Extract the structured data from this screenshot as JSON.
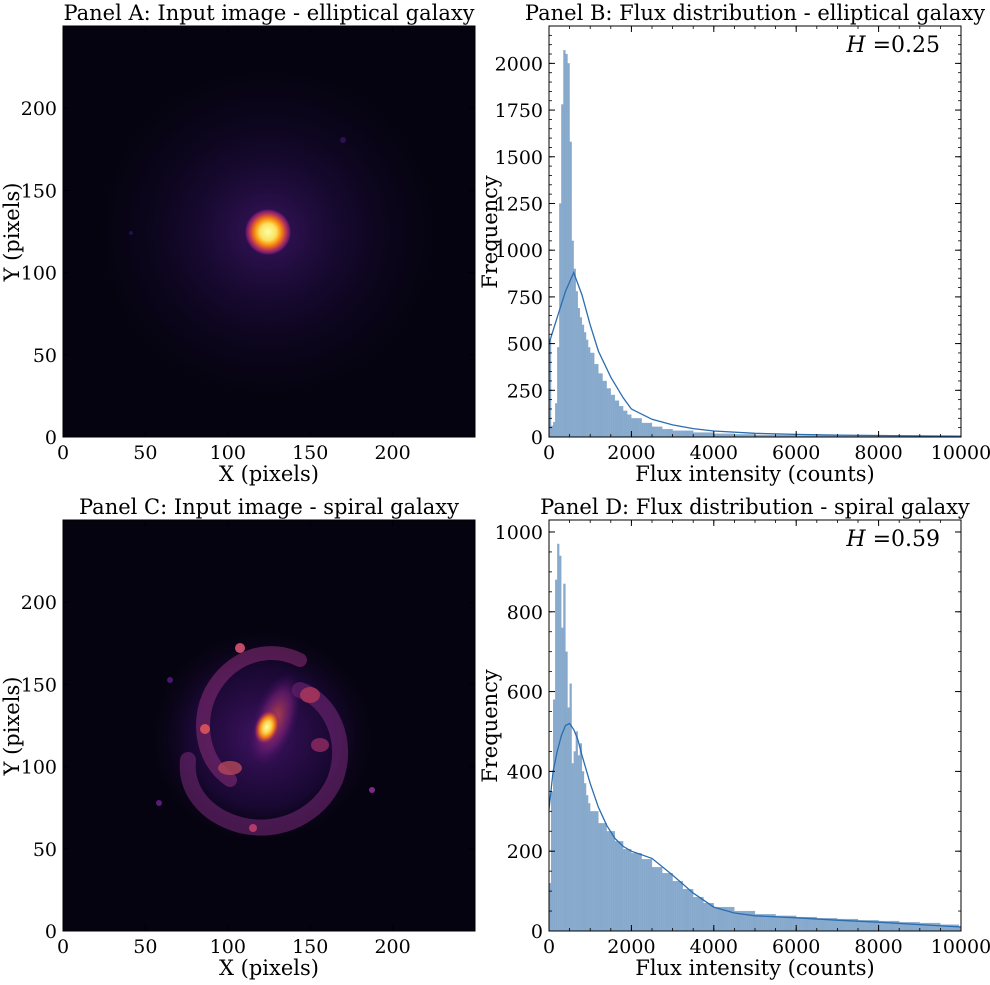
{
  "figure": {
    "panels": [
      {
        "title": "Panel A: Input image - elliptical galaxy",
        "xlabel": "X (pixels)",
        "ylabel": "Y (pixels)",
        "xticks": [
          "0",
          "50",
          "100",
          "150",
          "200"
        ],
        "yticks": [
          "0",
          "50",
          "100",
          "150",
          "200"
        ]
      },
      {
        "title": "Panel B: Flux distribution - elliptical galaxy",
        "xlabel": "Flux intensity (counts)",
        "ylabel": "Frequency",
        "annotation_symbol": "H",
        "annotation_text": " =0.25",
        "xticks": [
          "0",
          "2000",
          "4000",
          "6000",
          "8000",
          "10000"
        ],
        "yticks": [
          "0",
          "250",
          "500",
          "750",
          "1000",
          "1250",
          "1500",
          "1750",
          "2000"
        ]
      },
      {
        "title": "Panel C: Input image - spiral galaxy",
        "xlabel": "X (pixels)",
        "ylabel": "Y (pixels)",
        "xticks": [
          "0",
          "50",
          "100",
          "150",
          "200"
        ],
        "yticks": [
          "0",
          "50",
          "100",
          "150",
          "200"
        ]
      },
      {
        "title": "Panel D: Flux distribution - spiral galaxy",
        "xlabel": "Flux intensity (counts)",
        "ylabel": "Frequency",
        "annotation_symbol": "H",
        "annotation_text": " =0.59",
        "xticks": [
          "0",
          "2000",
          "4000",
          "6000",
          "8000",
          "10000"
        ],
        "yticks": [
          "0",
          "200",
          "400",
          "600",
          "800",
          "1000"
        ]
      }
    ]
  },
  "colors": {
    "hist_fill": "#86a9cc",
    "kde_line": "#2a6db0",
    "image_bg": "#05030f",
    "colormap": "inferno"
  },
  "chart_data": [
    {
      "type": "heatmap",
      "title": "Panel A: Input image - elliptical galaxy",
      "xlabel": "X (pixels)",
      "ylabel": "Y (pixels)",
      "xlim": [
        0,
        250
      ],
      "ylim": [
        0,
        250
      ],
      "colormap": "inferno",
      "features": [
        {
          "x": 125,
          "y": 125,
          "kind": "compact bright core, smooth radial falloff"
        }
      ]
    },
    {
      "type": "bar",
      "title": "Panel B: Flux distribution - elliptical galaxy",
      "xlabel": "Flux intensity (counts)",
      "ylabel": "Frequency",
      "xlim": [
        0,
        10000
      ],
      "ylim": [
        0,
        2200
      ],
      "bin_width": 50,
      "histogram": {
        "x": [
          0,
          50,
          100,
          150,
          200,
          250,
          300,
          350,
          400,
          450,
          500,
          550,
          600,
          650,
          700,
          750,
          800,
          850,
          900,
          950,
          1000,
          1100,
          1200,
          1300,
          1400,
          1500,
          1600,
          1700,
          1800,
          1900,
          2000,
          2250,
          2500,
          2750,
          3000,
          3500,
          4000,
          4500,
          5000,
          6000,
          7000,
          8000,
          9000,
          9950
        ],
        "y": [
          520,
          60,
          80,
          180,
          480,
          1250,
          1780,
          2070,
          2050,
          2000,
          1580,
          1050,
          900,
          780,
          690,
          640,
          600,
          560,
          520,
          480,
          450,
          390,
          340,
          300,
          260,
          225,
          195,
          165,
          140,
          120,
          100,
          75,
          55,
          42,
          34,
          24,
          18,
          14,
          11,
          8,
          6,
          5,
          4,
          3
        ]
      },
      "kde": {
        "x": [
          0,
          200,
          400,
          600,
          800,
          1000,
          1200,
          1500,
          1800,
          2000,
          2500,
          3000,
          3500,
          4000,
          5000,
          6000,
          7000,
          8000,
          9000,
          10000
        ],
        "y": [
          500,
          640,
          780,
          880,
          760,
          600,
          460,
          320,
          210,
          150,
          95,
          65,
          45,
          32,
          20,
          14,
          10,
          8,
          6,
          5
        ]
      },
      "annotation": "H =0.25"
    },
    {
      "type": "heatmap",
      "title": "Panel C: Input image - spiral galaxy",
      "xlabel": "X (pixels)",
      "ylabel": "Y (pixels)",
      "xlim": [
        0,
        250
      ],
      "ylim": [
        0,
        250
      ],
      "colormap": "inferno",
      "features": [
        {
          "x": 124,
          "y": 124,
          "kind": "bright elongated nucleus"
        },
        {
          "x": 110,
          "y": 172,
          "kind": "hii knot"
        },
        {
          "x": 86,
          "y": 122,
          "kind": "hii knot"
        },
        {
          "x": 115,
          "y": 63,
          "kind": "hii knot"
        },
        {
          "x": 150,
          "y": 145,
          "kind": "spiral arm"
        }
      ]
    },
    {
      "type": "bar",
      "title": "Panel D: Flux distribution - spiral galaxy",
      "xlabel": "Flux intensity (counts)",
      "ylabel": "Frequency",
      "xlim": [
        0,
        10000
      ],
      "ylim": [
        0,
        1030
      ],
      "bin_width": 50,
      "histogram": {
        "x": [
          0,
          50,
          100,
          150,
          200,
          250,
          300,
          350,
          400,
          450,
          500,
          550,
          600,
          650,
          700,
          750,
          800,
          850,
          900,
          950,
          1000,
          1200,
          1400,
          1600,
          1800,
          2000,
          2250,
          2500,
          2750,
          3000,
          3250,
          3500,
          3750,
          4000,
          4500,
          5000,
          5500,
          6000,
          6500,
          7000,
          7500,
          8000,
          8500,
          9000,
          9500,
          9950
        ],
        "y": [
          120,
          350,
          580,
          880,
          970,
          940,
          760,
          870,
          700,
          560,
          620,
          420,
          450,
          500,
          440,
          470,
          400,
          370,
          340,
          320,
          300,
          270,
          250,
          225,
          205,
          195,
          180,
          160,
          145,
          125,
          105,
          85,
          70,
          60,
          50,
          42,
          38,
          35,
          32,
          30,
          27,
          25,
          22,
          20,
          16,
          12
        ]
      },
      "kde": {
        "x": [
          0,
          100,
          200,
          300,
          400,
          500,
          600,
          700,
          800,
          1000,
          1200,
          1400,
          1600,
          1800,
          2000,
          2500,
          3000,
          3500,
          4000,
          4500,
          5000,
          6000,
          7000,
          8000,
          9000,
          10000
        ],
        "y": [
          305,
          400,
          450,
          490,
          515,
          520,
          505,
          480,
          440,
          370,
          310,
          265,
          232,
          212,
          200,
          182,
          140,
          95,
          60,
          45,
          38,
          33,
          27,
          22,
          16,
          10
        ]
      },
      "annotation": "H =0.59"
    }
  ]
}
